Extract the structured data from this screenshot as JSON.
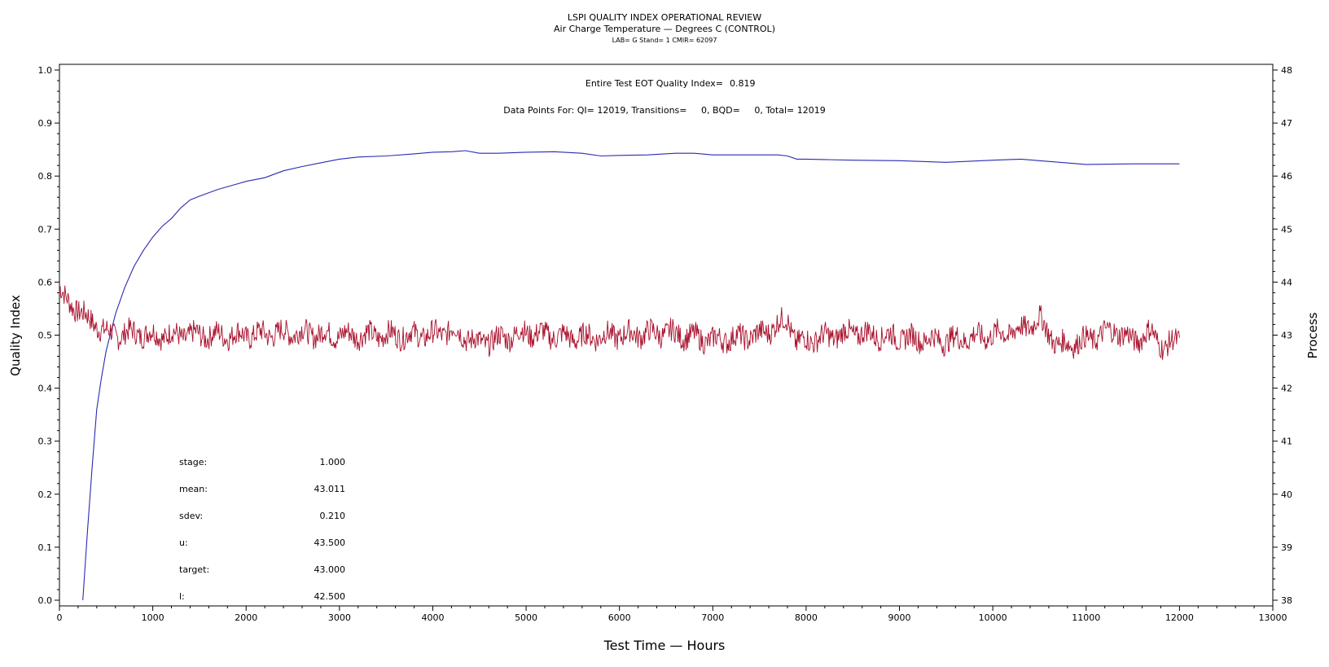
{
  "header": {
    "title": "LSPI QUALITY INDEX OPERATIONAL REVIEW",
    "subtitle": "Air Charge Temperature — Degrees C (CONTROL)",
    "info": "LAB= G Stand= 1 CMIR= 62097"
  },
  "annotations": {
    "eot_label": "Entire Test EOT Quality Index=",
    "eot_value": "0.819",
    "datapoints": "Data Points For: QI= 12019, Transitions=     0, BQD=     0, Total= 12019"
  },
  "stats": [
    {
      "label": "stage:",
      "value": "1.000"
    },
    {
      "label": "mean:",
      "value": "43.011"
    },
    {
      "label": "sdev:",
      "value": "0.210"
    },
    {
      "label": "u:",
      "value": "43.500"
    },
    {
      "label": "target:",
      "value": "43.000"
    },
    {
      "label": "l:",
      "value": "42.500"
    }
  ],
  "colors": {
    "quality_index": "#2a2ab4",
    "process": "#a8102c",
    "axis": "#000000"
  },
  "chart_data": {
    "type": "line",
    "xlabel": "Test Time — Hours",
    "ylabel": "Quality Index",
    "y2label": "Process",
    "xlim": [
      0,
      13000
    ],
    "ylim": [
      0,
      1.0
    ],
    "y2lim": [
      38,
      48
    ],
    "xticks": [
      0,
      1000,
      2000,
      3000,
      4000,
      5000,
      6000,
      7000,
      8000,
      9000,
      10000,
      11000,
      12000,
      13000
    ],
    "yticks": [
      "0.0",
      "0.1",
      "0.2",
      "0.3",
      "0.4",
      "0.5",
      "0.6",
      "0.7",
      "0.8",
      "0.9",
      "1.0"
    ],
    "y2ticks": [
      38,
      39,
      40,
      41,
      42,
      43,
      44,
      45,
      46,
      47,
      48
    ],
    "grid": false,
    "series": [
      {
        "axis": "left",
        "x": [
          250,
          300,
          350,
          400,
          450,
          500,
          600,
          700,
          800,
          900,
          1000,
          1100,
          1200,
          1300,
          1400,
          1500,
          1700,
          1900,
          2000,
          2200,
          2400,
          2600,
          2800,
          3000,
          3200,
          3500,
          3800,
          4000,
          4200,
          4350,
          4500,
          4700,
          5000,
          5300,
          5600,
          5800,
          6000,
          6300,
          6600,
          6800,
          7000,
          7300,
          7700,
          7800,
          7900,
          8000,
          8500,
          9000,
          9500,
          10000,
          10300,
          10500,
          11000,
          11500,
          12000
        ],
        "values": [
          0.0,
          0.13,
          0.25,
          0.36,
          0.42,
          0.47,
          0.54,
          0.59,
          0.63,
          0.66,
          0.685,
          0.705,
          0.72,
          0.74,
          0.755,
          0.762,
          0.775,
          0.785,
          0.79,
          0.797,
          0.81,
          0.818,
          0.825,
          0.832,
          0.836,
          0.838,
          0.842,
          0.845,
          0.846,
          0.848,
          0.843,
          0.843,
          0.845,
          0.846,
          0.843,
          0.838,
          0.839,
          0.84,
          0.843,
          0.843,
          0.84,
          0.84,
          0.84,
          0.838,
          0.832,
          0.832,
          0.83,
          0.829,
          0.826,
          0.83,
          0.832,
          0.829,
          0.822,
          0.823,
          0.823
        ]
      },
      {
        "axis": "right",
        "x": [
          0,
          50,
          100,
          200,
          300,
          400,
          500,
          600,
          800,
          1000,
          1200,
          1500,
          2000,
          2500,
          3000,
          3500,
          4000,
          4200,
          4500,
          5000,
          5500,
          6000,
          6500,
          7000,
          7500,
          7800,
          7900,
          8000,
          8500,
          9000,
          9500,
          10000,
          10300,
          10500,
          10700,
          11000,
          11300,
          11500,
          11700,
          11850,
          12000
        ],
        "values": [
          43.9,
          43.7,
          43.6,
          43.5,
          43.3,
          43.2,
          43.05,
          43.0,
          43.05,
          43.0,
          43.0,
          43.0,
          43.0,
          43.05,
          43.0,
          43.0,
          43.0,
          43.1,
          42.85,
          43.05,
          42.95,
          43.0,
          43.05,
          42.9,
          43.0,
          43.3,
          42.85,
          42.9,
          43.05,
          42.95,
          42.9,
          43.0,
          43.1,
          43.3,
          42.8,
          42.9,
          43.1,
          42.9,
          43.05,
          42.75,
          42.95
        ]
      }
    ]
  }
}
